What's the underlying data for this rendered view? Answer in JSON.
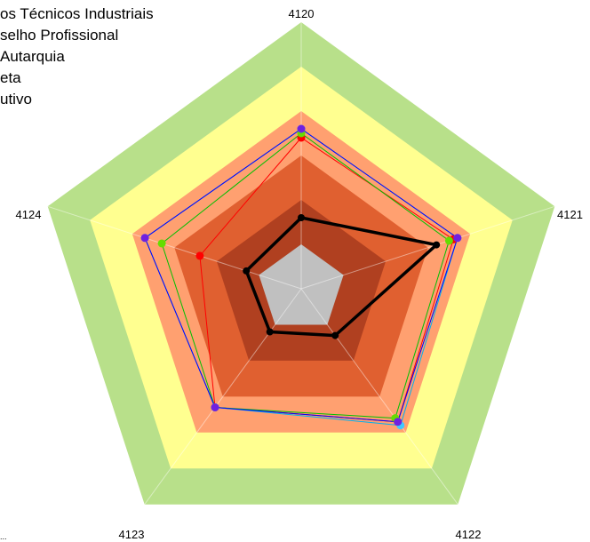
{
  "chart_data": {
    "type": "radar",
    "categories": [
      "4120",
      "4121",
      "4122",
      "4123",
      "4124"
    ],
    "range": [
      0,
      5
    ],
    "bands": [
      {
        "from": 0,
        "to": 1,
        "color": "#c0c0c0"
      },
      {
        "from": 1,
        "to": 2,
        "color": "#b04020"
      },
      {
        "from": 2,
        "to": 3,
        "color": "#e06030"
      },
      {
        "from": 3,
        "to": 4,
        "color": "#ffa070"
      },
      {
        "from": 4,
        "to": 5,
        "color": "#ffff90"
      },
      {
        "from": 5,
        "to": 6,
        "color": "#b8e08a"
      }
    ],
    "legend": {
      "placement": "top-left",
      "entries": [
        "os Técnicos Industriais",
        "selho Profissional",
        "Autarquia",
        "eta",
        "utivo"
      ]
    },
    "bottom_left_fragment": "...",
    "series": [
      {
        "color": "#ff0000",
        "marker": "#ff0000",
        "values": [
          3.4,
          3.6,
          3.7,
          3.3,
          2.4
        ]
      },
      {
        "color": "#00c000",
        "marker": "#66dd00",
        "values": [
          3.5,
          3.5,
          3.6,
          3.3,
          3.3
        ]
      },
      {
        "color": "#00b0f0",
        "marker": "#40c8ff",
        "values": [
          3.6,
          3.7,
          3.8,
          3.3,
          3.7
        ]
      },
      {
        "color": "#0000ff",
        "marker": "#7020e0",
        "values": [
          3.6,
          3.7,
          3.7,
          3.3,
          3.7
        ]
      },
      {
        "color": "#000000",
        "marker": "#000000",
        "values": [
          1.6,
          3.2,
          1.3,
          1.2,
          1.3
        ],
        "emphasis": true
      }
    ]
  }
}
